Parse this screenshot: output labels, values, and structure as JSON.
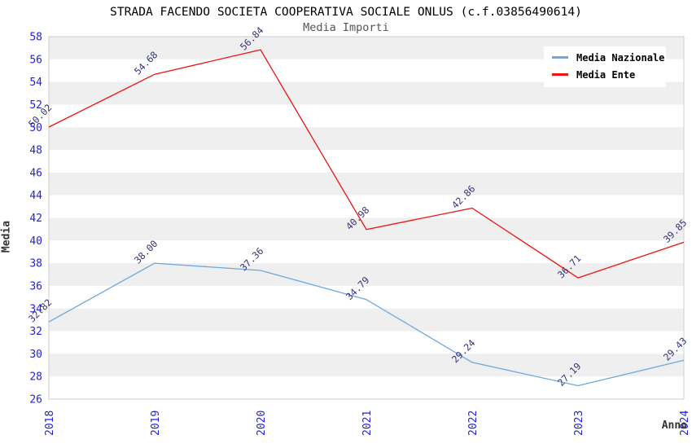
{
  "header": {
    "title": "STRADA FACENDO SOCIETA COOPERATIVA SOCIALE ONLUS (c.f.03856490614)",
    "subtitle": "Media Importi"
  },
  "chart_data": {
    "type": "line",
    "x": [
      2018,
      2019,
      2020,
      2021,
      2022,
      2023,
      2024
    ],
    "series": [
      {
        "name": "Media Nazionale",
        "color": "#6FA8DC",
        "values": [
          32.82,
          38.0,
          37.36,
          34.79,
          29.24,
          27.19,
          29.43
        ],
        "labels": [
          "32.82",
          "38.00",
          "37.36",
          "34.79",
          "29.24",
          "27.19",
          "29.43"
        ]
      },
      {
        "name": "Media Ente",
        "color": "#EE1111",
        "values": [
          50.02,
          54.68,
          56.84,
          40.98,
          42.86,
          36.71,
          39.85
        ],
        "labels": [
          "50.02",
          "54.68",
          "56.84",
          "40.98",
          "42.86",
          "36.71",
          "39.85"
        ]
      }
    ],
    "xlabel": "Anno",
    "ylabel": "Media",
    "ylim": [
      26,
      58
    ],
    "ytick_step": 2,
    "grid": "banded-horizontal",
    "legend_position": "top-right"
  },
  "colors": {
    "tick_label": "#2222DD",
    "point_label": "#333377",
    "band_gray": "#EFEFEF",
    "band_white": "#FFFFFF",
    "plot_border": "#CCCCCC",
    "axis_title": "#333333"
  }
}
